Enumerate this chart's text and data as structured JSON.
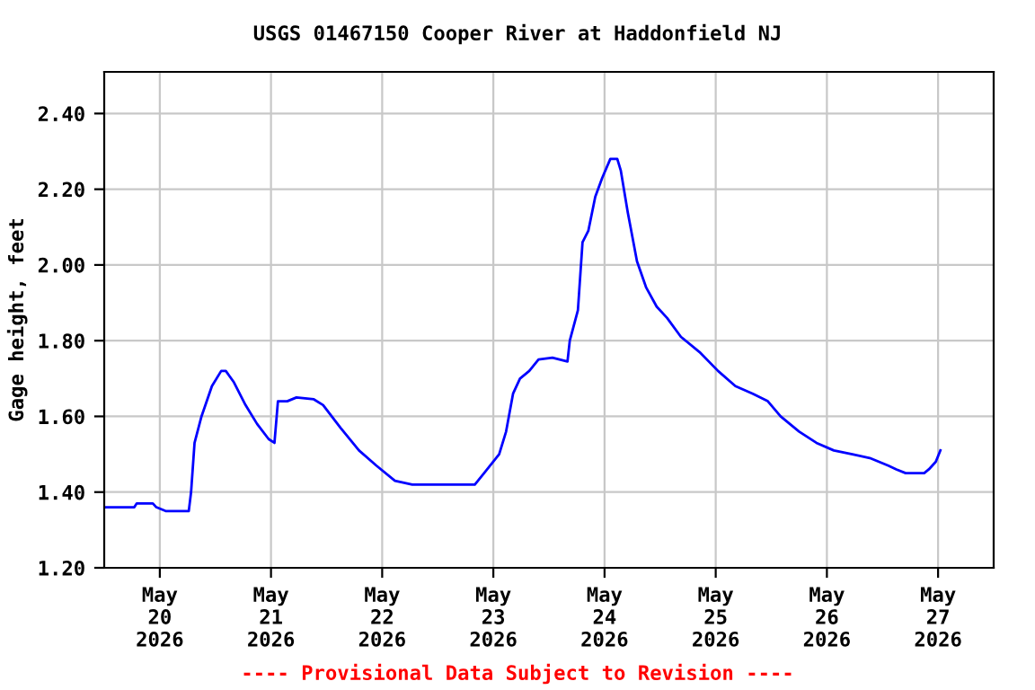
{
  "chart_data": {
    "type": "line",
    "title": "USGS 01467150 Cooper River at Haddonfield NJ",
    "ylabel": "Gage height, feet",
    "annotations": [
      "---- Provisional Data Subject to Revision ----"
    ],
    "x": [
      "2026-05-19T12:00",
      "2026-05-19T18:30",
      "2026-05-19T19:00",
      "2026-05-19T22:30",
      "2026-05-19T23:15",
      "2026-05-20T01:15",
      "2026-05-20T06:15",
      "2026-05-20T06:45",
      "2026-05-20T07:30",
      "2026-05-20T09:00",
      "2026-05-20T11:15",
      "2026-05-20T13:15",
      "2026-05-20T14:15",
      "2026-05-20T16:00",
      "2026-05-20T18:30",
      "2026-05-20T21:00",
      "2026-05-20T23:30",
      "2026-05-21T00:45",
      "2026-05-21T01:30",
      "2026-05-21T03:30",
      "2026-05-21T05:30",
      "2026-05-21T09:15",
      "2026-05-21T11:15",
      "2026-05-21T15:00",
      "2026-05-21T19:00",
      "2026-05-21T22:45",
      "2026-05-22T02:45",
      "2026-05-22T06:30",
      "2026-05-22T12:30",
      "2026-05-22T20:00",
      "2026-05-22T22:00",
      "2026-05-23T01:15",
      "2026-05-23T02:45",
      "2026-05-23T04:15",
      "2026-05-23T05:45",
      "2026-05-23T07:45",
      "2026-05-23T09:45",
      "2026-05-23T12:45",
      "2026-05-23T16:00",
      "2026-05-23T16:30",
      "2026-05-23T18:15",
      "2026-05-23T19:15",
      "2026-05-23T20:30",
      "2026-05-23T22:00",
      "2026-05-23T23:30",
      "2026-05-24T01:15",
      "2026-05-24T02:45",
      "2026-05-24T03:30",
      "2026-05-24T05:00",
      "2026-05-24T07:00",
      "2026-05-24T09:00",
      "2026-05-24T11:15",
      "2026-05-24T13:30",
      "2026-05-24T16:30",
      "2026-05-24T20:30",
      "2026-05-25T00:30",
      "2026-05-25T04:15",
      "2026-05-25T08:00",
      "2026-05-25T11:15",
      "2026-05-25T14:00",
      "2026-05-25T16:00",
      "2026-05-25T18:00",
      "2026-05-25T21:45",
      "2026-05-26T01:30",
      "2026-05-26T05:30",
      "2026-05-26T09:15",
      "2026-05-26T13:15",
      "2026-05-26T15:00",
      "2026-05-26T17:00",
      "2026-05-26T21:00",
      "2026-05-26T22:00",
      "2026-05-26T23:30",
      "2026-05-27T00:30"
    ],
    "series": [
      {
        "color": "#0000ff",
        "values": [
          1.36,
          1.36,
          1.37,
          1.37,
          1.36,
          1.35,
          1.35,
          1.4,
          1.53,
          1.6,
          1.68,
          1.72,
          1.72,
          1.69,
          1.63,
          1.58,
          1.54,
          1.53,
          1.64,
          1.64,
          1.65,
          1.645,
          1.63,
          1.57,
          1.51,
          1.47,
          1.43,
          1.42,
          1.42,
          1.42,
          1.45,
          1.5,
          1.56,
          1.66,
          1.7,
          1.72,
          1.75,
          1.755,
          1.745,
          1.8,
          1.88,
          2.06,
          2.09,
          2.18,
          2.23,
          2.28,
          2.28,
          2.25,
          2.14,
          2.01,
          1.94,
          1.89,
          1.86,
          1.81,
          1.77,
          1.72,
          1.68,
          1.66,
          1.64,
          1.6,
          1.58,
          1.56,
          1.53,
          1.51,
          1.5,
          1.49,
          1.47,
          1.46,
          1.45,
          1.45,
          1.46,
          1.48,
          1.51
        ]
      }
    ],
    "xlim": [
      "2026-05-19T12:00",
      "2026-05-27T12:00"
    ],
    "xticks": [
      {
        "value": "2026-05-20",
        "label": "May\n20\n2026"
      },
      {
        "value": "2026-05-21",
        "label": "May\n21\n2026"
      },
      {
        "value": "2026-05-22",
        "label": "May\n22\n2026"
      },
      {
        "value": "2026-05-23",
        "label": "May\n23\n2026"
      },
      {
        "value": "2026-05-24",
        "label": "May\n24\n2026"
      },
      {
        "value": "2026-05-25",
        "label": "May\n25\n2026"
      },
      {
        "value": "2026-05-26",
        "label": "May\n26\n2026"
      },
      {
        "value": "2026-05-27",
        "label": "May\n27\n2026"
      }
    ],
    "ylim": [
      1.2,
      2.51
    ],
    "yticks": [
      {
        "value": 1.2,
        "label": "1.20"
      },
      {
        "value": 1.4,
        "label": "1.40"
      },
      {
        "value": 1.6,
        "label": "1.60"
      },
      {
        "value": 1.8,
        "label": "1.80"
      },
      {
        "value": 2.0,
        "label": "2.00"
      },
      {
        "value": 2.2,
        "label": "2.20"
      },
      {
        "value": 2.4,
        "label": "2.40"
      }
    ],
    "grid": true,
    "legend": false
  }
}
